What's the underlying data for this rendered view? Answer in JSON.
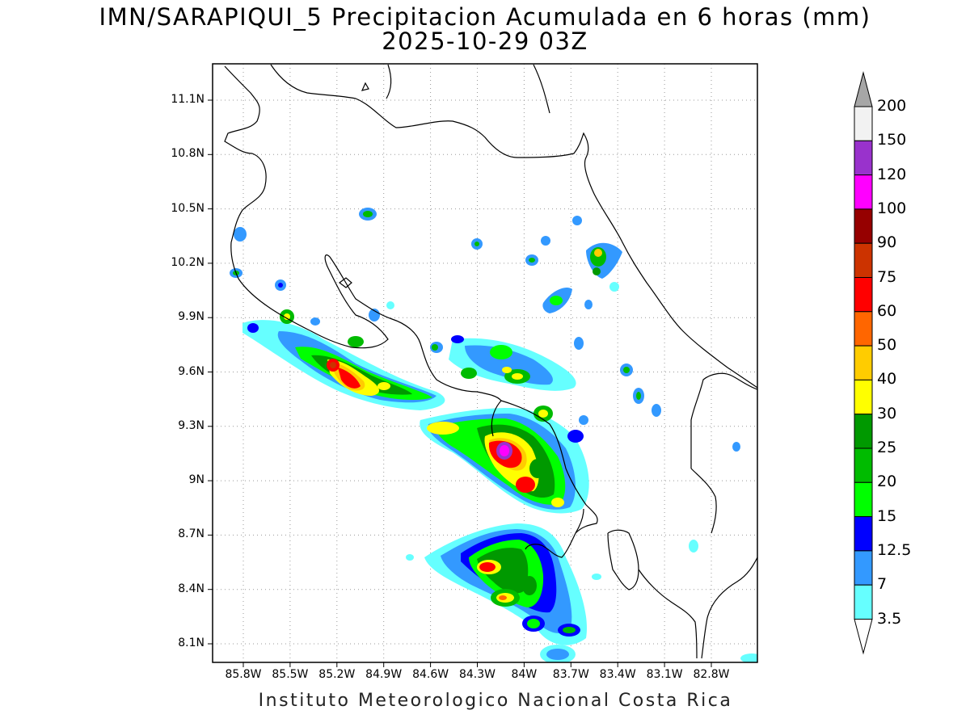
{
  "title_line1": "IMN/SARAPIQUI_5 Precipitacion Acumulada en 6 horas (mm)",
  "title_line2": "2025-10-29 03Z",
  "footer": "Instituto Meteorologico Nacional Costa Rica",
  "lat_labels": [
    "11.1N",
    "10.8N",
    "10.5N",
    "10.2N",
    "9.9N",
    "9.6N",
    "9.3N",
    "9N",
    "8.7N",
    "8.4N",
    "8.1N"
  ],
  "lon_labels": [
    "85.8W",
    "85.5W",
    "85.2W",
    "84.9W",
    "84.6W",
    "84.3W",
    "84W",
    "83.7W",
    "83.4W",
    "83.1W",
    "82.8W"
  ],
  "colorbar": {
    "labels": [
      "200",
      "150",
      "120",
      "100",
      "90",
      "75",
      "60",
      "50",
      "40",
      "30",
      "25",
      "20",
      "15",
      "12.5",
      "7",
      "3.5"
    ],
    "colors": [
      "#f2f2f2",
      "#9932cc",
      "#ff00ff",
      "#960000",
      "#cc3300",
      "#ff0000",
      "#ff6600",
      "#ffcc00",
      "#ffff00",
      "#009900",
      "#00bb00",
      "#00ff00",
      "#0000ff",
      "#3399ff",
      "#66ffff"
    ],
    "over_color": "#a6a6a6",
    "under_color": "#ffffff"
  }
}
